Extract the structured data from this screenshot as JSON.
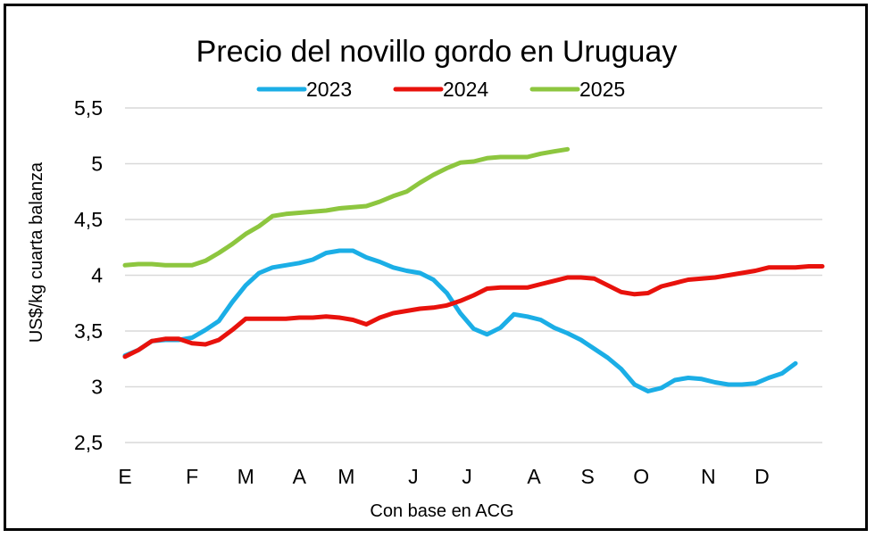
{
  "chart_data": {
    "type": "line",
    "title": "Precio del novillo gordo en Uruguay",
    "ylabel": "US$/kg cuarta balanza",
    "xlabel": "Con base en ACG",
    "ylim": [
      2.5,
      5.5
    ],
    "yticks": [
      {
        "value": 2.5,
        "label": "2,5"
      },
      {
        "value": 3,
        "label": "3"
      },
      {
        "value": 3.5,
        "label": "3,5"
      },
      {
        "value": 4,
        "label": "4"
      },
      {
        "value": 4.5,
        "label": "4,5"
      },
      {
        "value": 5,
        "label": "5"
      },
      {
        "value": 5.5,
        "label": "5,5"
      }
    ],
    "xlim": [
      0,
      52
    ],
    "xticks": [
      {
        "value": 0,
        "label": "E"
      },
      {
        "value": 5,
        "label": "F"
      },
      {
        "value": 9,
        "label": "M"
      },
      {
        "value": 13,
        "label": "A"
      },
      {
        "value": 16.5,
        "label": "M"
      },
      {
        "value": 21.5,
        "label": "J"
      },
      {
        "value": 25.5,
        "label": "J"
      },
      {
        "value": 30.5,
        "label": "A"
      },
      {
        "value": 34.5,
        "label": "S"
      },
      {
        "value": 38.5,
        "label": "O"
      },
      {
        "value": 43.5,
        "label": "N"
      },
      {
        "value": 47.5,
        "label": "D"
      }
    ],
    "grid": true,
    "legend_position": "top",
    "series": [
      {
        "name": "2023",
        "color": "#1BAEE6",
        "x": [
          0,
          1,
          2,
          3,
          4,
          5,
          6,
          7,
          8,
          9,
          10,
          11,
          12,
          13,
          14,
          15,
          16,
          17,
          18,
          19,
          20,
          21,
          22,
          23,
          24,
          25,
          26,
          27,
          28,
          29,
          30,
          31,
          32,
          33,
          34,
          35,
          36,
          37,
          38,
          39,
          40,
          41,
          42,
          43,
          44,
          45,
          46,
          47,
          48,
          49,
          50
        ],
        "values": [
          3.28,
          3.33,
          3.41,
          3.42,
          3.42,
          3.44,
          3.51,
          3.59,
          3.76,
          3.91,
          4.02,
          4.07,
          4.09,
          4.11,
          4.14,
          4.2,
          4.22,
          4.22,
          4.16,
          4.12,
          4.07,
          4.04,
          4.02,
          3.96,
          3.84,
          3.66,
          3.52,
          3.47,
          3.53,
          3.65,
          3.63,
          3.6,
          3.53,
          3.48,
          3.42,
          3.34,
          3.26,
          3.16,
          3.02,
          2.96,
          2.99,
          3.06,
          3.08,
          3.07,
          3.04,
          3.02,
          3.02,
          3.03,
          3.08,
          3.12,
          3.21
        ]
      },
      {
        "name": "2024",
        "color": "#E8120C",
        "x": [
          0,
          1,
          2,
          3,
          4,
          5,
          6,
          7,
          8,
          9,
          10,
          11,
          12,
          13,
          14,
          15,
          16,
          17,
          18,
          19,
          20,
          21,
          22,
          23,
          24,
          25,
          26,
          27,
          28,
          29,
          30,
          31,
          32,
          33,
          34,
          35,
          36,
          37,
          38,
          39,
          40,
          41,
          42,
          43,
          44,
          45,
          46,
          47,
          48,
          49,
          50,
          51,
          52
        ],
        "values": [
          3.27,
          3.33,
          3.41,
          3.43,
          3.43,
          3.39,
          3.38,
          3.42,
          3.51,
          3.61,
          3.61,
          3.61,
          3.61,
          3.62,
          3.62,
          3.63,
          3.62,
          3.6,
          3.56,
          3.62,
          3.66,
          3.68,
          3.7,
          3.71,
          3.73,
          3.77,
          3.82,
          3.88,
          3.89,
          3.89,
          3.89,
          3.92,
          3.95,
          3.98,
          3.98,
          3.97,
          3.91,
          3.85,
          3.83,
          3.84,
          3.9,
          3.93,
          3.96,
          3.97,
          3.98,
          4.0,
          4.02,
          4.04,
          4.07,
          4.07,
          4.07,
          4.08,
          4.08
        ]
      },
      {
        "name": "2025",
        "color": "#8DC63F",
        "x": [
          0,
          1,
          2,
          3,
          4,
          5,
          6,
          7,
          8,
          9,
          10,
          11,
          12,
          13,
          14,
          15,
          16,
          17,
          18,
          19,
          20,
          21,
          22,
          23,
          24,
          25,
          26,
          27,
          28,
          29,
          30,
          31,
          32,
          33
        ],
        "values": [
          4.09,
          4.1,
          4.1,
          4.09,
          4.09,
          4.09,
          4.13,
          4.2,
          4.28,
          4.37,
          4.44,
          4.53,
          4.55,
          4.56,
          4.57,
          4.58,
          4.6,
          4.61,
          4.62,
          4.66,
          4.71,
          4.75,
          4.83,
          4.9,
          4.96,
          5.01,
          5.02,
          5.05,
          5.06,
          5.06,
          5.06,
          5.09,
          5.11,
          5.13
        ]
      }
    ]
  }
}
